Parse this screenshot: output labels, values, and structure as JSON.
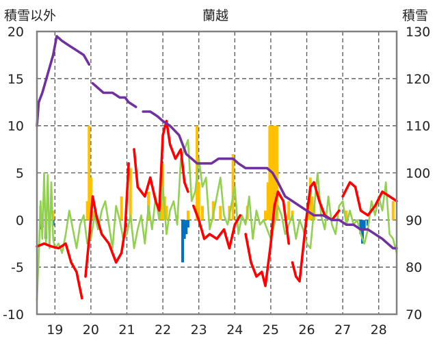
{
  "chart_data": {
    "type": "line",
    "title": "蘭越",
    "ylabel_left": "積雪以外",
    "ylabel_right": "積雪",
    "x_range": [
      18.5,
      28.5
    ],
    "x_ticks": [
      "19",
      "20",
      "21",
      "22",
      "23",
      "24",
      "25",
      "26",
      "27",
      "28"
    ],
    "y_left_range": [
      -10,
      20
    ],
    "y_left_ticks": [
      "20",
      "15",
      "10",
      "5",
      "0",
      "-5",
      "-10"
    ],
    "y_right_range": [
      70,
      130
    ],
    "y_right_ticks": [
      "130",
      "120",
      "110",
      "100",
      "90",
      "80",
      "70"
    ],
    "grid": true,
    "colors": {
      "temperature": "#ff0000",
      "wind": "#92d050",
      "snow_depth": "#7030a0",
      "snowfall": "#ffc000",
      "precip_neg": "#0070c0",
      "grid": "#555555",
      "frame": "#808080"
    },
    "series": [
      {
        "key": "temperature",
        "axis": "left",
        "x": [
          18.5,
          18.7,
          18.9,
          19.1,
          19.3,
          19.45,
          19.6,
          19.75,
          19.85,
          19.95,
          20.05,
          20.15,
          20.3,
          20.5,
          20.7,
          20.85,
          20.95,
          21.05,
          21.2,
          21.3,
          21.5,
          21.65,
          21.8,
          21.9,
          22.0,
          22.1,
          22.2,
          22.35,
          22.5,
          22.6,
          22.7,
          22.85,
          23.0,
          23.15,
          23.3,
          23.5,
          23.7,
          23.85,
          24.0,
          24.15,
          24.3,
          24.45,
          24.6,
          24.75,
          24.85,
          25.0,
          25.1,
          25.2,
          25.35,
          25.5,
          25.6,
          25.7,
          25.8,
          25.9,
          26.0,
          26.1,
          26.2,
          26.35,
          26.5,
          26.7,
          26.9,
          27.0,
          27.2,
          27.35,
          27.5,
          27.7,
          27.9,
          28.1,
          28.3,
          28.5
        ],
        "values": [
          -2.8,
          -2.5,
          -2.8,
          -3.0,
          -2.5,
          -4.5,
          -5.5,
          -8.3,
          -6.0,
          -2.0,
          2.5,
          0.5,
          -1.5,
          -2.5,
          -4.5,
          -3.5,
          -1.0,
          6.0,
          7.5,
          3.5,
          2.5,
          4.5,
          2.0,
          1.0,
          9.0,
          10.5,
          8.0,
          6.5,
          7.5,
          4.0,
          3.0,
          1.5,
          0.0,
          -2.0,
          -1.5,
          -2.0,
          -1.0,
          -3.0,
          -0.5,
          0.5,
          -1.5,
          -4.5,
          -6.0,
          -5.5,
          -7.0,
          -2.5,
          1.5,
          3.0,
          2.0,
          -2.5,
          -4.5,
          -6.0,
          -6.5,
          -3.0,
          0.5,
          3.5,
          4.0,
          2.0,
          0.5,
          0.0,
          1.0,
          2.5,
          4.0,
          3.5,
          1.0,
          0.5,
          1.5,
          3.0,
          2.5,
          2.0
        ],
        "gaps_after": [
          7,
          17,
          30,
          39,
          49,
          60
        ]
      },
      {
        "key": "wind",
        "axis": "left",
        "x": [
          18.5,
          18.55,
          18.6,
          18.65,
          18.7,
          18.75,
          18.8,
          18.85,
          18.9,
          18.95,
          19.0,
          19.1,
          19.2,
          19.3,
          19.4,
          19.5,
          19.6,
          19.7,
          19.8,
          19.9,
          20.0,
          20.1,
          20.2,
          20.3,
          20.4,
          20.5,
          20.6,
          20.7,
          20.8,
          20.9,
          21.0,
          21.1,
          21.2,
          21.3,
          21.4,
          21.5,
          21.6,
          21.7,
          21.8,
          21.9,
          22.0,
          22.1,
          22.2,
          22.3,
          22.4,
          22.5,
          22.6,
          22.7,
          22.8,
          22.9,
          23.0,
          23.1,
          23.2,
          23.3,
          23.4,
          23.5,
          23.6,
          23.7,
          23.8,
          23.9,
          24.0,
          24.1,
          24.2,
          24.3,
          24.4,
          24.5,
          24.6,
          24.7,
          24.8,
          24.9,
          25.0,
          25.1,
          25.2,
          25.3,
          25.4,
          25.5,
          25.6,
          25.7,
          25.8,
          25.9,
          26.0,
          26.1,
          26.2,
          26.3,
          26.4,
          26.5,
          26.6,
          26.7,
          26.8,
          26.9,
          27.0,
          27.1,
          27.2,
          27.3,
          27.4,
          27.5,
          27.6,
          27.7,
          27.8,
          27.9,
          28.0,
          28.1,
          28.2,
          28.3,
          28.4,
          28.5
        ],
        "values": [
          -8.5,
          -4.0,
          2.0,
          -2.0,
          5.0,
          -2.5,
          4.8,
          -3.0,
          4.0,
          -2.0,
          -3.0,
          -2.5,
          -3.5,
          -1.5,
          1.0,
          -1.0,
          -3.0,
          -0.5,
          0.5,
          -2.5,
          -2.0,
          0.5,
          -1.0,
          1.0,
          2.0,
          -0.5,
          -3.0,
          1.5,
          0.0,
          -2.0,
          -1.5,
          0.5,
          -3.0,
          -1.0,
          0.5,
          -2.5,
          1.5,
          -1.0,
          2.5,
          0.0,
          3.5,
          -1.5,
          1.0,
          2.0,
          -0.5,
          6.5,
          7.5,
          8.5,
          2.0,
          3.0,
          6.5,
          3.5,
          4.5,
          -1.0,
          0.5,
          2.5,
          4.5,
          0.5,
          -0.5,
          1.5,
          3.5,
          -1.5,
          0.5,
          -0.5,
          2.5,
          -2.0,
          1.0,
          -0.5,
          0.0,
          -1.0,
          -2.0,
          -0.5,
          1.5,
          0.5,
          -1.5,
          -0.5,
          0.5,
          -2.0,
          0.0,
          -1.0,
          -2.5,
          -3.0,
          1.0,
          5.0,
          0.5,
          -1.0,
          2.5,
          -0.5,
          -1.5,
          1.5,
          2.0,
          -0.5,
          1.0,
          -0.5,
          0.0,
          -1.5,
          -2.5,
          -1.0,
          2.0,
          0.5,
          2.5,
          1.0,
          4.0,
          -1.5,
          -2.0,
          -3.5
        ]
      },
      {
        "key": "snow_depth",
        "axis": "right",
        "x": [
          18.5,
          18.55,
          18.65,
          18.8,
          18.95,
          19.05,
          19.2,
          19.4,
          19.6,
          19.8,
          19.95,
          20.05,
          20.2,
          20.35,
          20.6,
          20.8,
          20.95,
          21.05,
          21.25,
          21.45,
          21.65,
          21.85,
          22.0,
          22.2,
          22.45,
          22.65,
          22.8,
          22.95,
          23.15,
          23.35,
          23.55,
          23.75,
          23.95,
          24.1,
          24.3,
          24.5,
          24.7,
          24.9,
          25.05,
          25.2,
          25.4,
          25.6,
          25.8,
          26.0,
          26.2,
          26.45,
          26.7,
          26.9,
          27.1,
          27.3,
          27.5,
          27.7,
          27.9,
          28.1,
          28.25,
          28.4,
          28.5
        ],
        "values": [
          110,
          115,
          117,
          121,
          125,
          129,
          128,
          127,
          126,
          125,
          123,
          119,
          118,
          117,
          117,
          116,
          116,
          115,
          114,
          113,
          113,
          112,
          111,
          110,
          108,
          104,
          103,
          102,
          102,
          102,
          103,
          103,
          103,
          102,
          101,
          101,
          101,
          101,
          100,
          98,
          95,
          94,
          93,
          92,
          91,
          91,
          90,
          90,
          89,
          89,
          88,
          88,
          87,
          86,
          85,
          84,
          84
        ],
        "gaps_after": [
          10,
          18
        ]
      }
    ],
    "bars": [
      {
        "key": "snowfall",
        "axis": "left",
        "x": [
          18.6,
          18.95,
          19.9,
          19.95,
          20.0,
          20.1,
          20.85,
          21.1,
          21.6,
          21.95,
          22.0,
          22.05,
          22.1,
          22.7,
          22.95,
          23.0,
          23.1,
          23.4,
          23.6,
          23.85,
          23.95,
          24.35,
          24.85,
          24.92,
          24.97,
          25.02,
          25.07,
          25.12,
          25.17,
          25.5,
          25.6,
          26.05,
          26.1,
          26.15,
          26.2,
          27.1,
          28.4
        ],
        "values": [
          1.5,
          1.0,
          2.0,
          10.0,
          4.5,
          1.0,
          2.5,
          5.5,
          3.0,
          1.0,
          6.0,
          2.5,
          1.5,
          1.0,
          10.0,
          4.0,
          1.5,
          2.0,
          1.5,
          1.5,
          7.0,
          1.5,
          1.0,
          4.0,
          10.0,
          10.0,
          10.0,
          10.0,
          10.0,
          2.0,
          1.0,
          1.5,
          4.5,
          2.5,
          1.5,
          1.0,
          2.0
        ]
      },
      {
        "key": "precip_neg",
        "axis": "left",
        "x": [
          18.6,
          18.65,
          18.75,
          18.85,
          18.95,
          22.55,
          22.6,
          22.65,
          22.7,
          27.5,
          27.55,
          27.6,
          27.7
        ],
        "values": [
          -1.0,
          -0.8,
          -2.0,
          -1.0,
          -0.6,
          -4.5,
          -2.0,
          -1.5,
          -0.8,
          -1.5,
          -2.5,
          -1.0,
          -0.6
        ]
      }
    ]
  }
}
